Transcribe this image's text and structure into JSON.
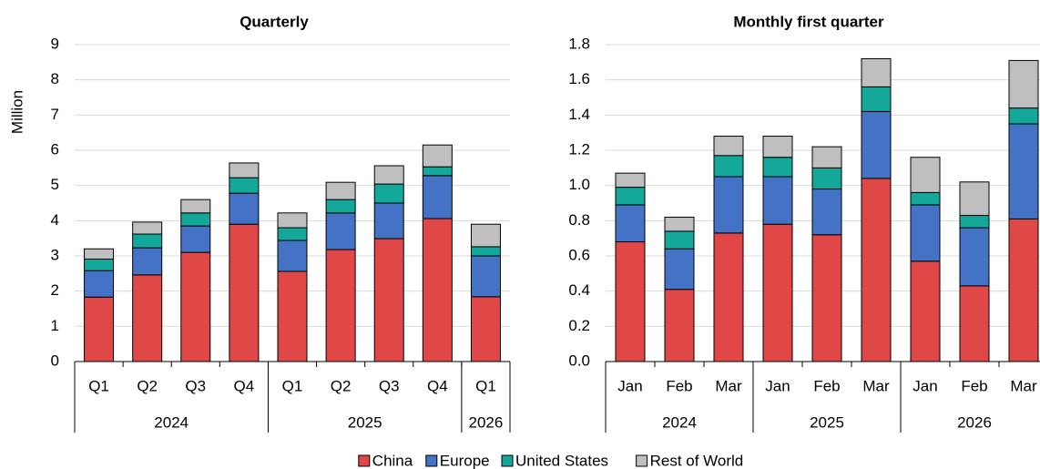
{
  "chart_data": [
    {
      "type": "stacked-bar",
      "title": "Quarterly",
      "ylabel": "Million",
      "groups": [
        {
          "label": "2024",
          "categories": [
            "Q1",
            "Q2",
            "Q3",
            "Q4"
          ]
        },
        {
          "label": "2025",
          "categories": [
            "Q1",
            "Q2",
            "Q3",
            "Q4"
          ]
        },
        {
          "label": "2026",
          "categories": [
            "Q1"
          ]
        }
      ],
      "series": [
        {
          "name": "China",
          "color": "#e04848",
          "values": [
            1.83,
            2.46,
            3.1,
            3.9,
            2.56,
            3.18,
            3.49,
            4.06,
            1.84
          ]
        },
        {
          "name": "Europe",
          "color": "#4472c4",
          "values": [
            0.75,
            0.77,
            0.75,
            0.88,
            0.88,
            1.04,
            1.01,
            1.22,
            1.16
          ]
        },
        {
          "name": "United States",
          "color": "#14a89a",
          "values": [
            0.33,
            0.39,
            0.37,
            0.44,
            0.36,
            0.38,
            0.54,
            0.25,
            0.26
          ]
        },
        {
          "name": "Rest of World",
          "color": "#bfbfbf",
          "values": [
            0.29,
            0.34,
            0.38,
            0.42,
            0.42,
            0.49,
            0.52,
            0.62,
            0.64
          ]
        }
      ],
      "ylim": [
        0,
        9
      ],
      "yticks": [
        0,
        1,
        2,
        3,
        4,
        5,
        6,
        7,
        8,
        9
      ]
    },
    {
      "type": "stacked-bar",
      "title": "Monthly first quarter",
      "groups": [
        {
          "label": "2024",
          "categories": [
            "Jan",
            "Feb",
            "Mar"
          ]
        },
        {
          "label": "2025",
          "categories": [
            "Jan",
            "Feb",
            "Mar"
          ]
        },
        {
          "label": "2026",
          "categories": [
            "Jan",
            "Feb",
            "Mar"
          ]
        }
      ],
      "series": [
        {
          "values": [
            0.68,
            0.41,
            0.73,
            0.78,
            0.72,
            1.04,
            0.57,
            0.43,
            0.81
          ]
        },
        {
          "values": [
            0.21,
            0.23,
            0.32,
            0.27,
            0.26,
            0.38,
            0.32,
            0.33,
            0.54
          ]
        },
        {
          "values": [
            0.1,
            0.1,
            0.12,
            0.11,
            0.12,
            0.14,
            0.07,
            0.07,
            0.09
          ]
        },
        {
          "values": [
            0.08,
            0.08,
            0.11,
            0.12,
            0.12,
            0.16,
            0.2,
            0.19,
            0.27
          ]
        }
      ],
      "ylim": [
        0,
        1.8
      ],
      "yticks": [
        {
          "value": 0,
          "label": "0.0"
        },
        0.2,
        0.4,
        0.6,
        0.8,
        {
          "value": 1,
          "label": "1.0"
        },
        1.2,
        1.4,
        1.6,
        1.8
      ]
    }
  ]
}
